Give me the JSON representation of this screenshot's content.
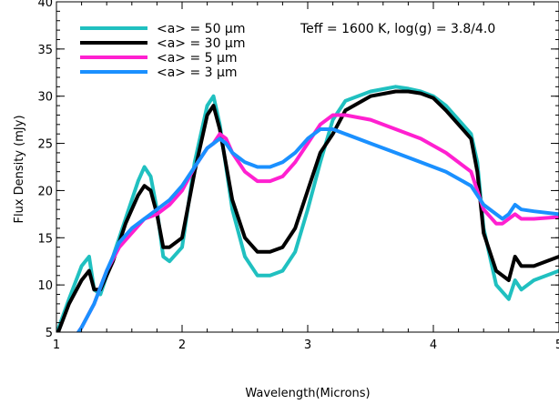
{
  "chart_data": {
    "type": "line",
    "title": "",
    "xlabel": "Wavelength(Microns)",
    "ylabel": "Flux Density (mJy)",
    "xlim": [
      1,
      5
    ],
    "ylim": [
      5,
      40
    ],
    "grid": false,
    "legend_position": "top-left",
    "annotation": "Teff = 1600 K, log(g) = 3.8/4.0",
    "x_ticks": [
      1,
      2,
      3,
      4,
      5
    ],
    "x_tick_labels": [
      "1",
      "2",
      "3",
      "4",
      "5"
    ],
    "y_ticks": [
      5,
      10,
      15,
      20,
      25,
      30,
      35,
      40
    ],
    "y_tick_labels": [
      "5",
      "10",
      "15",
      "20",
      "25",
      "30",
      "35",
      "40"
    ],
    "series": [
      {
        "name": "<a> = 50 μm",
        "color": "#20c0c0",
        "x": [
          1.0,
          1.1,
          1.2,
          1.26,
          1.3,
          1.35,
          1.45,
          1.55,
          1.65,
          1.7,
          1.75,
          1.8,
          1.85,
          1.9,
          2.0,
          2.1,
          2.2,
          2.25,
          2.3,
          2.4,
          2.5,
          2.6,
          2.7,
          2.8,
          2.9,
          3.0,
          3.1,
          3.2,
          3.3,
          3.5,
          3.7,
          3.8,
          3.9,
          4.0,
          4.1,
          4.2,
          4.3,
          4.35,
          4.4,
          4.5,
          4.6,
          4.65,
          4.7,
          4.8,
          5.0
        ],
        "values": [
          4.8,
          8.5,
          12.0,
          13.0,
          9.5,
          9.0,
          13.0,
          17.0,
          21.0,
          22.5,
          21.5,
          18.0,
          13.0,
          12.5,
          14.0,
          23.0,
          29.0,
          30.0,
          27.0,
          18.0,
          13.0,
          11.0,
          11.0,
          11.5,
          13.5,
          18.0,
          23.0,
          27.5,
          29.5,
          30.5,
          31.0,
          30.8,
          30.5,
          30.0,
          29.0,
          27.5,
          26.0,
          23.0,
          16.0,
          10.0,
          8.5,
          10.5,
          9.5,
          10.5,
          11.5
        ]
      },
      {
        "name": "<a> = 30 μm",
        "color": "#000000",
        "x": [
          1.0,
          1.1,
          1.2,
          1.26,
          1.3,
          1.35,
          1.45,
          1.55,
          1.65,
          1.7,
          1.75,
          1.8,
          1.85,
          1.9,
          2.0,
          2.1,
          2.2,
          2.25,
          2.3,
          2.4,
          2.5,
          2.6,
          2.7,
          2.8,
          2.9,
          3.0,
          3.1,
          3.2,
          3.3,
          3.5,
          3.7,
          3.8,
          3.9,
          4.0,
          4.1,
          4.2,
          4.3,
          4.35,
          4.4,
          4.5,
          4.6,
          4.65,
          4.7,
          4.8,
          5.0
        ],
        "values": [
          4.5,
          8.0,
          10.5,
          11.5,
          9.5,
          9.5,
          12.5,
          16.5,
          19.5,
          20.5,
          20.0,
          17.5,
          14.0,
          14.0,
          15.0,
          22.0,
          28.0,
          29.0,
          26.5,
          19.0,
          15.0,
          13.5,
          13.5,
          14.0,
          16.0,
          20.0,
          24.0,
          26.0,
          28.5,
          30.0,
          30.5,
          30.5,
          30.3,
          29.8,
          28.5,
          27.0,
          25.5,
          22.0,
          15.5,
          11.5,
          10.5,
          13.0,
          12.0,
          12.0,
          13.0
        ]
      },
      {
        "name": "<a> = 5 μm",
        "color": "#ff20d0",
        "x": [
          1.0,
          1.1,
          1.2,
          1.3,
          1.4,
          1.5,
          1.6,
          1.7,
          1.8,
          1.9,
          2.0,
          2.1,
          2.2,
          2.25,
          2.3,
          2.35,
          2.4,
          2.5,
          2.6,
          2.7,
          2.8,
          2.9,
          3.0,
          3.1,
          3.2,
          3.3,
          3.5,
          3.7,
          3.9,
          4.1,
          4.3,
          4.4,
          4.5,
          4.55,
          4.6,
          4.65,
          4.7,
          4.8,
          5.0
        ],
        "values": [
          2.0,
          3.5,
          5.5,
          8.0,
          11.5,
          14.0,
          15.5,
          17.0,
          17.5,
          18.5,
          20.0,
          22.5,
          24.5,
          25.0,
          26.0,
          25.5,
          24.0,
          22.0,
          21.0,
          21.0,
          21.5,
          23.0,
          25.0,
          27.0,
          28.0,
          28.0,
          27.5,
          26.5,
          25.5,
          24.0,
          22.0,
          18.0,
          16.5,
          16.5,
          17.0,
          17.5,
          17.0,
          17.0,
          17.2
        ]
      },
      {
        "name": "<a> = 3 μm",
        "color": "#1a90ff",
        "x": [
          1.0,
          1.1,
          1.2,
          1.3,
          1.4,
          1.5,
          1.6,
          1.7,
          1.8,
          1.9,
          2.0,
          2.1,
          2.2,
          2.25,
          2.3,
          2.35,
          2.4,
          2.5,
          2.6,
          2.7,
          2.8,
          2.9,
          3.0,
          3.1,
          3.2,
          3.3,
          3.5,
          3.7,
          3.9,
          4.1,
          4.3,
          4.4,
          4.5,
          4.55,
          4.6,
          4.65,
          4.7,
          4.8,
          5.0
        ],
        "values": [
          2.0,
          3.5,
          5.5,
          8.0,
          11.5,
          14.5,
          16.0,
          17.0,
          18.0,
          19.0,
          20.5,
          22.5,
          24.5,
          25.0,
          25.5,
          25.0,
          24.0,
          23.0,
          22.5,
          22.5,
          23.0,
          24.0,
          25.5,
          26.5,
          26.5,
          26.0,
          25.0,
          24.0,
          23.0,
          22.0,
          20.5,
          18.5,
          17.5,
          17.0,
          17.5,
          18.5,
          18.0,
          17.8,
          17.5
        ]
      }
    ]
  }
}
